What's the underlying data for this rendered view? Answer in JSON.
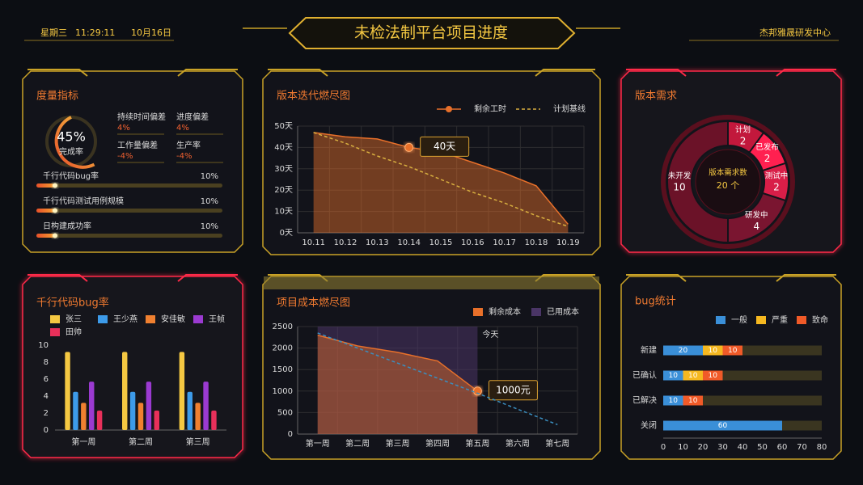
{
  "header": {
    "weekday": "星期三",
    "time": "11:29:11",
    "date": "10月16日",
    "title": "未检法制平台项目进度",
    "org": "杰邦雅晟研发中心"
  },
  "metrics": {
    "title": "度量指标",
    "gauge": {
      "value": 45,
      "label": "45%",
      "caption": "完成率"
    },
    "deviations": [
      {
        "name": "持续时间偏差",
        "value": "4%"
      },
      {
        "name": "进度偏差",
        "value": "4%"
      },
      {
        "name": "工作量偏差",
        "value": "-4%"
      },
      {
        "name": "生产率",
        "value": "-4%"
      }
    ],
    "rates": [
      {
        "name": "千行代码bug率",
        "value": 10,
        "label": "10%"
      },
      {
        "name": "千行代码测试用例规模",
        "value": 10,
        "label": "10%"
      },
      {
        "name": "日构建成功率",
        "value": 10,
        "label": "10%"
      }
    ]
  },
  "chart_data": [
    {
      "type": "line",
      "title": "版本迭代燃尽图",
      "categories": [
        "10.11",
        "10.12",
        "10.13",
        "10.14",
        "10.15",
        "10.16",
        "10.17",
        "10.18",
        "10.19"
      ],
      "ylim": [
        0,
        50
      ],
      "yticks": [
        {
          "value": 0,
          "label": "0天"
        },
        {
          "value": 10,
          "label": "10天"
        },
        {
          "value": 20,
          "label": "20天"
        },
        {
          "value": 30,
          "label": "30天"
        },
        {
          "value": 40,
          "label": "40天"
        },
        {
          "value": 50,
          "label": "50天"
        }
      ],
      "grid": true,
      "legend_marker": "line",
      "series": [
        {
          "name": "剩余工时",
          "color": "#e8702a",
          "area": true,
          "values": [
            47,
            45,
            44,
            40,
            38,
            33,
            28,
            22,
            4
          ],
          "value_labels": [
            null,
            null,
            null,
            "40天",
            null,
            null,
            null,
            null,
            null
          ]
        },
        {
          "name": "计划基线",
          "color": "#d9b040",
          "dashed": true,
          "values": [
            47,
            42,
            36,
            31,
            25,
            19,
            14,
            8,
            3
          ]
        }
      ]
    },
    {
      "type": "pie",
      "title": "版本需求",
      "categories": [
        "计划",
        "已发布",
        "测试中",
        "研发中",
        "未开发"
      ],
      "values": [
        2,
        2,
        2,
        4,
        10
      ],
      "colors": [
        "#c2183c",
        "#ff2050",
        "#d81e48",
        "#7a1530",
        "#6b1228"
      ],
      "total": {
        "value": 20,
        "label": "20 个",
        "caption": "版本需求数"
      }
    },
    {
      "type": "bar",
      "title": "千行代码bug率",
      "categories": [
        "第一周",
        "第二周",
        "第三周"
      ],
      "ylim": [
        0,
        10
      ],
      "yticks": [
        0,
        2,
        4,
        6,
        8,
        10
      ],
      "grid": false,
      "series": [
        {
          "name": "张三",
          "color": "#f5c842",
          "values": [
            9.2,
            9.2,
            9.2
          ]
        },
        {
          "name": "王少燕",
          "color": "#3d9be9",
          "values": [
            4.5,
            4.5,
            4.5
          ]
        },
        {
          "name": "安佳敏",
          "color": "#f08030",
          "values": [
            3.2,
            3.2,
            3.2
          ]
        },
        {
          "name": "王帧",
          "color": "#9b3ad1",
          "values": [
            5.7,
            5.7,
            5.7
          ]
        },
        {
          "name": "田帅",
          "color": "#e8305a",
          "values": [
            2.3,
            2.3,
            2.3
          ]
        }
      ]
    },
    {
      "type": "line",
      "title": "项目成本燃尽图",
      "categories": [
        "第一周",
        "第二周",
        "第三周",
        "第四周",
        "第五周",
        "第六周",
        "第七周"
      ],
      "ylim": [
        0,
        2500
      ],
      "yticks": [
        0,
        500,
        1000,
        1500,
        2000,
        2500
      ],
      "grid": true,
      "legend_marker": "rect",
      "annotation": "今天",
      "series": [
        {
          "name": "剩余成本",
          "color": "#e8702a",
          "area": true,
          "values": [
            2300,
            2050,
            1900,
            1700,
            1000,
            null,
            null
          ],
          "value_labels": [
            null,
            null,
            null,
            null,
            "1000元",
            null,
            null
          ]
        },
        {
          "name": "已用成本",
          "color": "#4a3566",
          "area_only": true,
          "values": [
            2500,
            2500,
            2500,
            2500,
            2500,
            null,
            null
          ]
        },
        {
          "color": "#3a8fc0",
          "dashed": true,
          "values": [
            2350,
            2000,
            1650,
            1300,
            950,
            580,
            220
          ]
        }
      ]
    },
    {
      "type": "bar",
      "orientation": "horizontal",
      "stacked": true,
      "title": "bug统计",
      "categories": [
        "新建",
        "已确认",
        "已解决",
        "关闭"
      ],
      "xlim": [
        0,
        80
      ],
      "xticks": [
        0,
        10,
        20,
        30,
        40,
        50,
        60,
        70,
        80
      ],
      "grid": false,
      "series": [
        {
          "name": "一般",
          "color": "#3a8fd8",
          "values": [
            20,
            10,
            10,
            60
          ]
        },
        {
          "name": "严重",
          "color": "#f5b820",
          "values": [
            10,
            10,
            null,
            null
          ]
        },
        {
          "name": "致命",
          "color": "#f05a28",
          "values": [
            10,
            10,
            10,
            null
          ]
        }
      ]
    }
  ]
}
